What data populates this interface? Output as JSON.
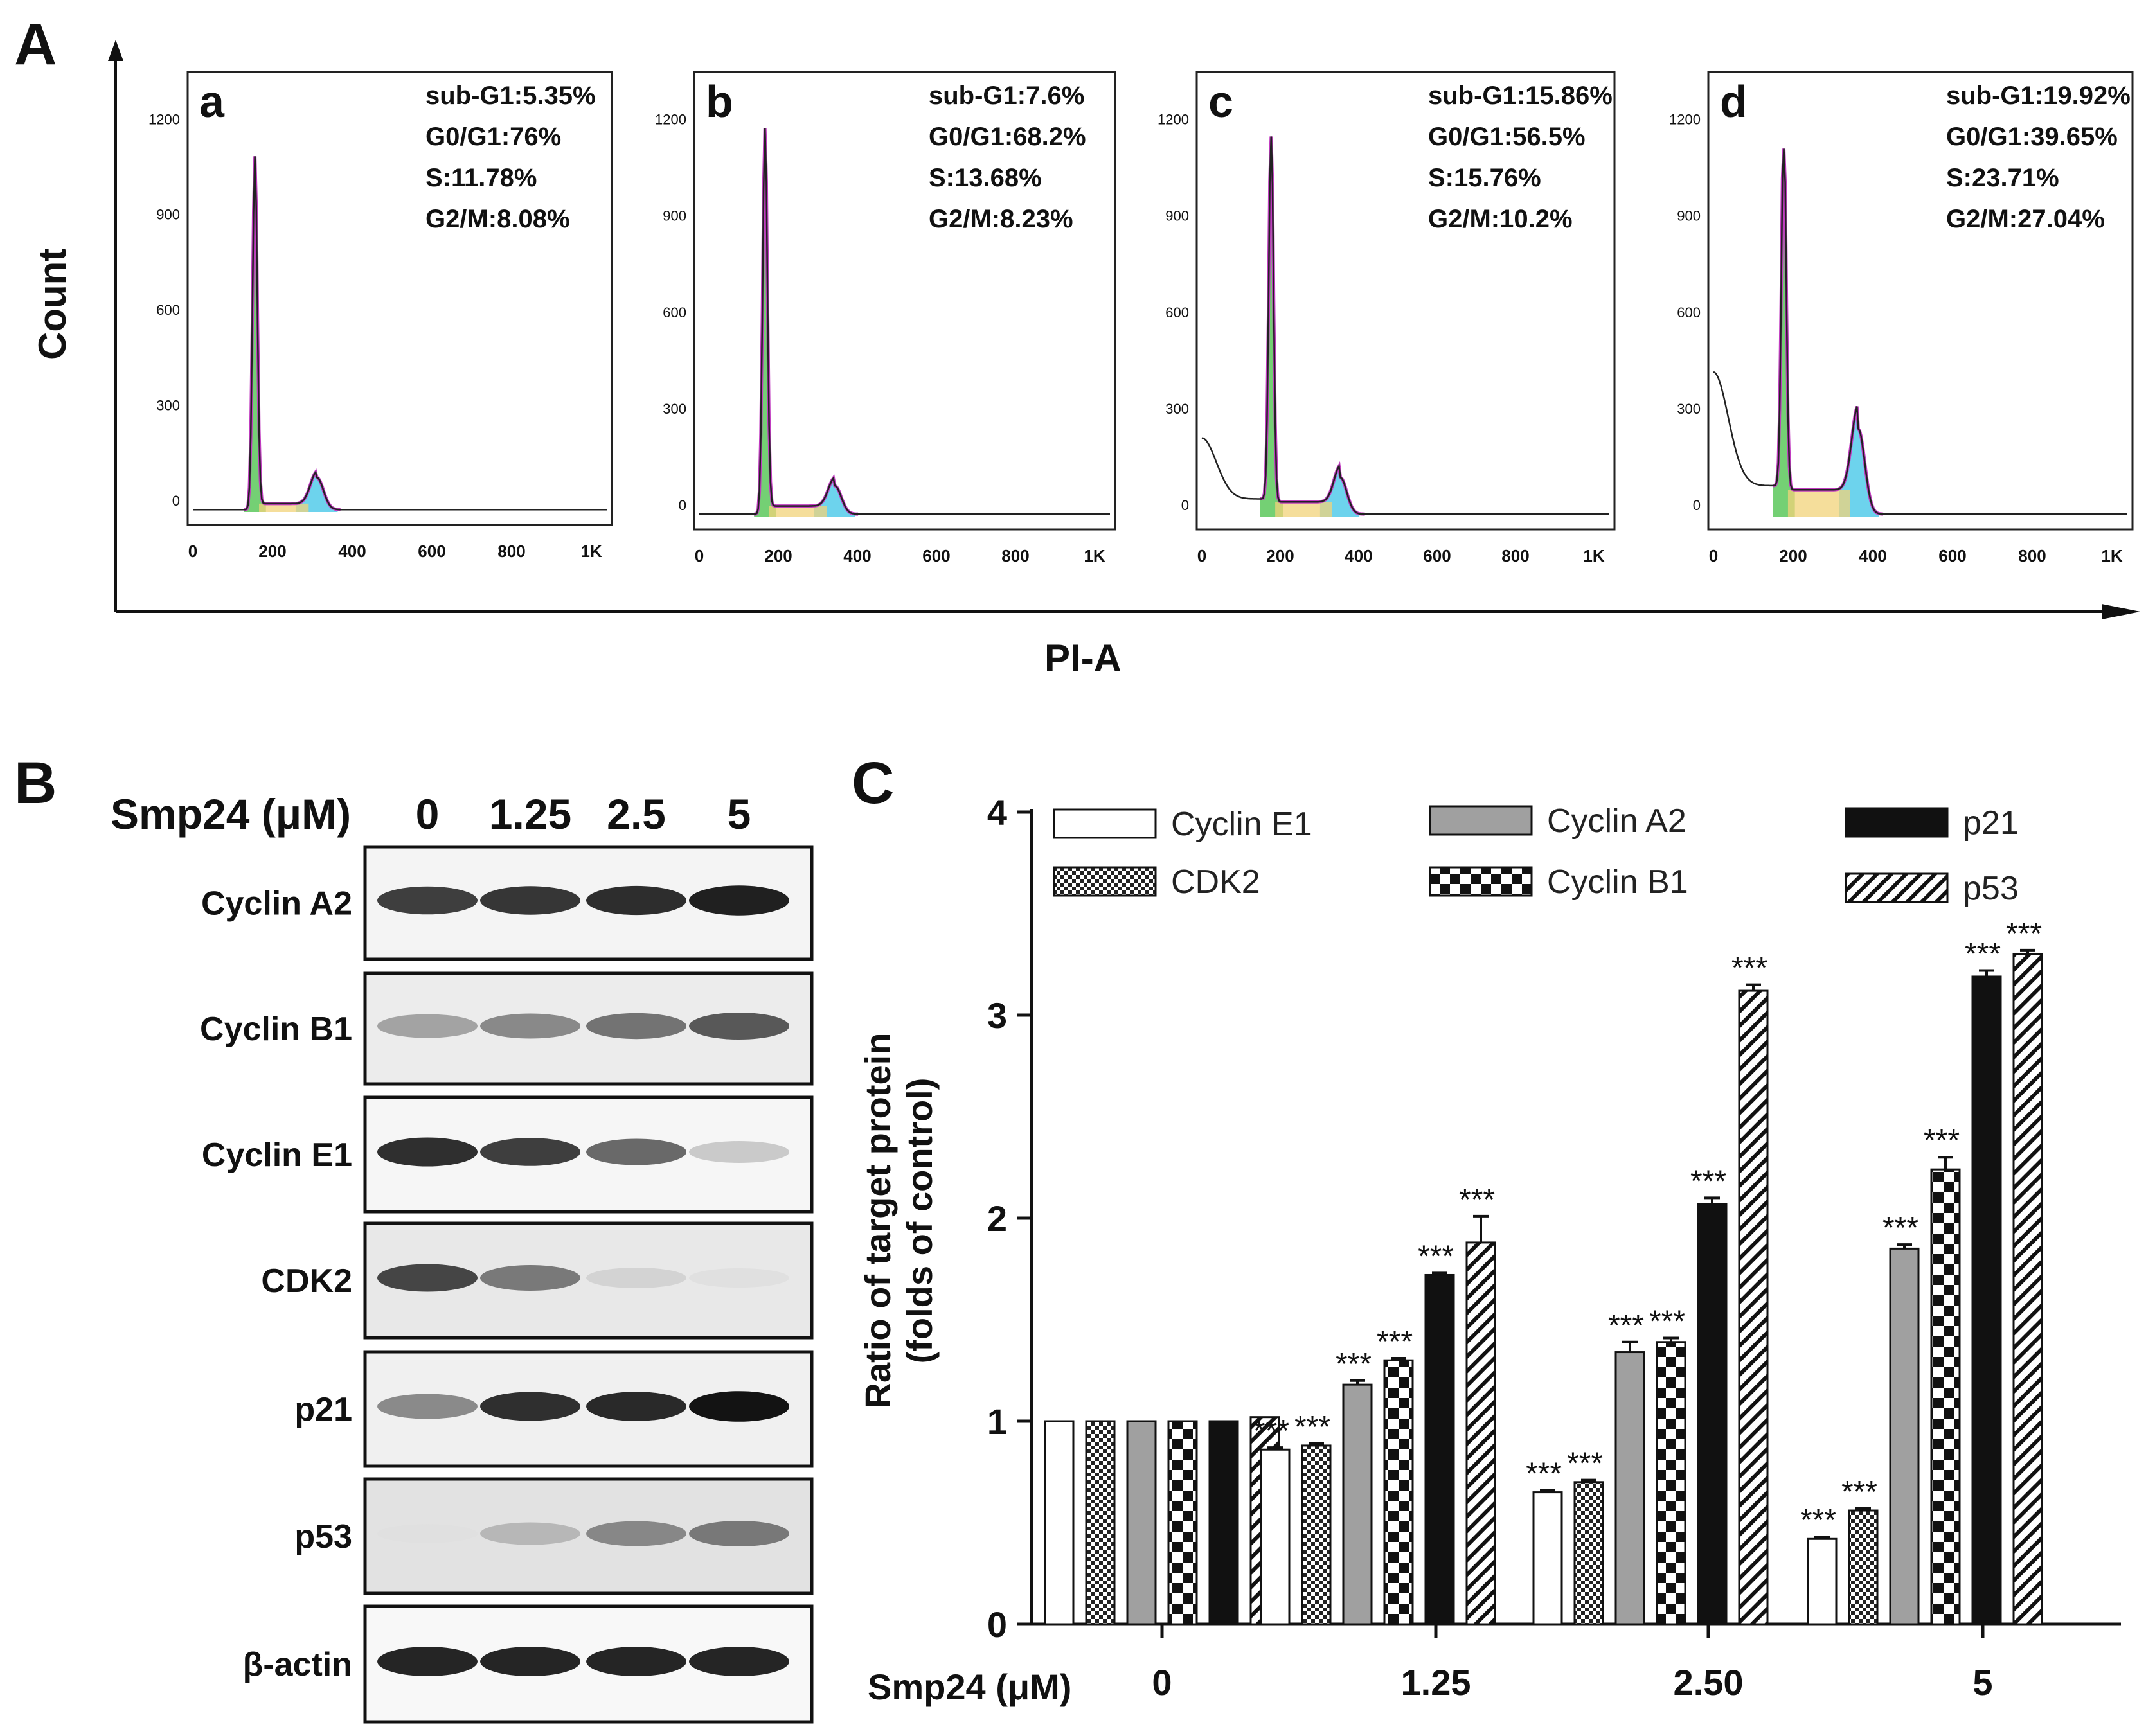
{
  "panel_a": {
    "letter": "A",
    "y_axis_label": "Count",
    "x_axis_label": "PI-A",
    "x_ticks": [
      "0",
      "200",
      "400",
      "600",
      "800",
      "1K"
    ],
    "y_ticks": [
      "0",
      "300",
      "600",
      "900",
      "1200"
    ],
    "histograms": [
      {
        "letter": "a",
        "stats": [
          "sub-G1:5.35%",
          "G0/G1:76%",
          "S:11.78%",
          "G2/M:8.08%"
        ]
      },
      {
        "letter": "b",
        "stats": [
          "sub-G1:7.6%",
          "G0/G1:68.2%",
          "S:13.68%",
          "G2/M:8.23%"
        ]
      },
      {
        "letter": "c",
        "stats": [
          "sub-G1:15.86%",
          "G0/G1:56.5%",
          "S:15.76%",
          "G2/M:10.2%"
        ]
      },
      {
        "letter": "d",
        "stats": [
          "sub-G1:19.92%",
          "G0/G1:39.65%",
          "S:23.71%",
          "G2/M:27.04%"
        ]
      }
    ]
  },
  "panel_b": {
    "letter": "B",
    "condition_label": "Smp24 (μM)",
    "lanes": [
      "0",
      "1.25",
      "2.5",
      "5"
    ],
    "blots": [
      {
        "label": "Cyclin A2",
        "intensity": [
          0.78,
          0.82,
          0.86,
          0.92
        ]
      },
      {
        "label": "Cyclin B1",
        "intensity": [
          0.45,
          0.55,
          0.62,
          0.7
        ]
      },
      {
        "label": "Cyclin E1",
        "intensity": [
          0.85,
          0.78,
          0.65,
          0.3
        ]
      },
      {
        "label": "CDK2",
        "intensity": [
          0.75,
          0.6,
          0.2,
          0.1
        ]
      },
      {
        "label": "p21",
        "intensity": [
          0.55,
          0.85,
          0.88,
          0.98
        ]
      },
      {
        "label": "p53",
        "intensity": [
          0.05,
          0.35,
          0.55,
          0.6
        ]
      },
      {
        "label": "β-actin",
        "intensity": [
          0.9,
          0.9,
          0.9,
          0.9
        ]
      }
    ]
  },
  "panel_c": {
    "letter": "C"
  },
  "chart_data": {
    "type": "bar",
    "title": "",
    "xlabel": "Smp24 (μM)",
    "ylabel": "Ratio of target protein (folds of control)",
    "ylim": [
      0,
      4
    ],
    "yticks": [
      "0",
      "1",
      "2",
      "3",
      "4"
    ],
    "categories": [
      "0",
      "1.25",
      "2.50",
      "5"
    ],
    "significance": "***",
    "series": [
      {
        "name": "Cyclin E1",
        "pattern": "white",
        "values": [
          1.0,
          0.86,
          0.65,
          0.42
        ],
        "errors": [
          0,
          0.01,
          0.01,
          0.01
        ],
        "sig": [
          false,
          true,
          true,
          true
        ]
      },
      {
        "name": "CDK2",
        "pattern": "checker-fine",
        "values": [
          1.0,
          0.88,
          0.7,
          0.56
        ],
        "errors": [
          0,
          0.01,
          0.01,
          0.01
        ],
        "sig": [
          false,
          true,
          true,
          true
        ]
      },
      {
        "name": "Cyclin A2",
        "pattern": "gray",
        "values": [
          1.0,
          1.18,
          1.34,
          1.85
        ],
        "errors": [
          0,
          0.02,
          0.05,
          0.02
        ],
        "sig": [
          false,
          true,
          true,
          true
        ]
      },
      {
        "name": "Cyclin B1",
        "pattern": "checker-coarse",
        "values": [
          1.0,
          1.3,
          1.39,
          2.24
        ],
        "errors": [
          0,
          0.01,
          0.02,
          0.06
        ],
        "sig": [
          false,
          true,
          true,
          true
        ]
      },
      {
        "name": "p21",
        "pattern": "black",
        "values": [
          1.0,
          1.72,
          2.07,
          3.19
        ],
        "errors": [
          0,
          0.01,
          0.03,
          0.03
        ],
        "sig": [
          false,
          true,
          true,
          true
        ]
      },
      {
        "name": "p53",
        "pattern": "stripe",
        "values": [
          1.02,
          1.88,
          3.12,
          3.3
        ],
        "errors": [
          0,
          0.13,
          0.03,
          0.02
        ],
        "sig": [
          false,
          true,
          true,
          true
        ]
      }
    ],
    "legend": [
      "Cyclin E1",
      "Cyclin A2",
      "p21",
      "CDK2",
      "Cyclin B1",
      "p53"
    ]
  }
}
